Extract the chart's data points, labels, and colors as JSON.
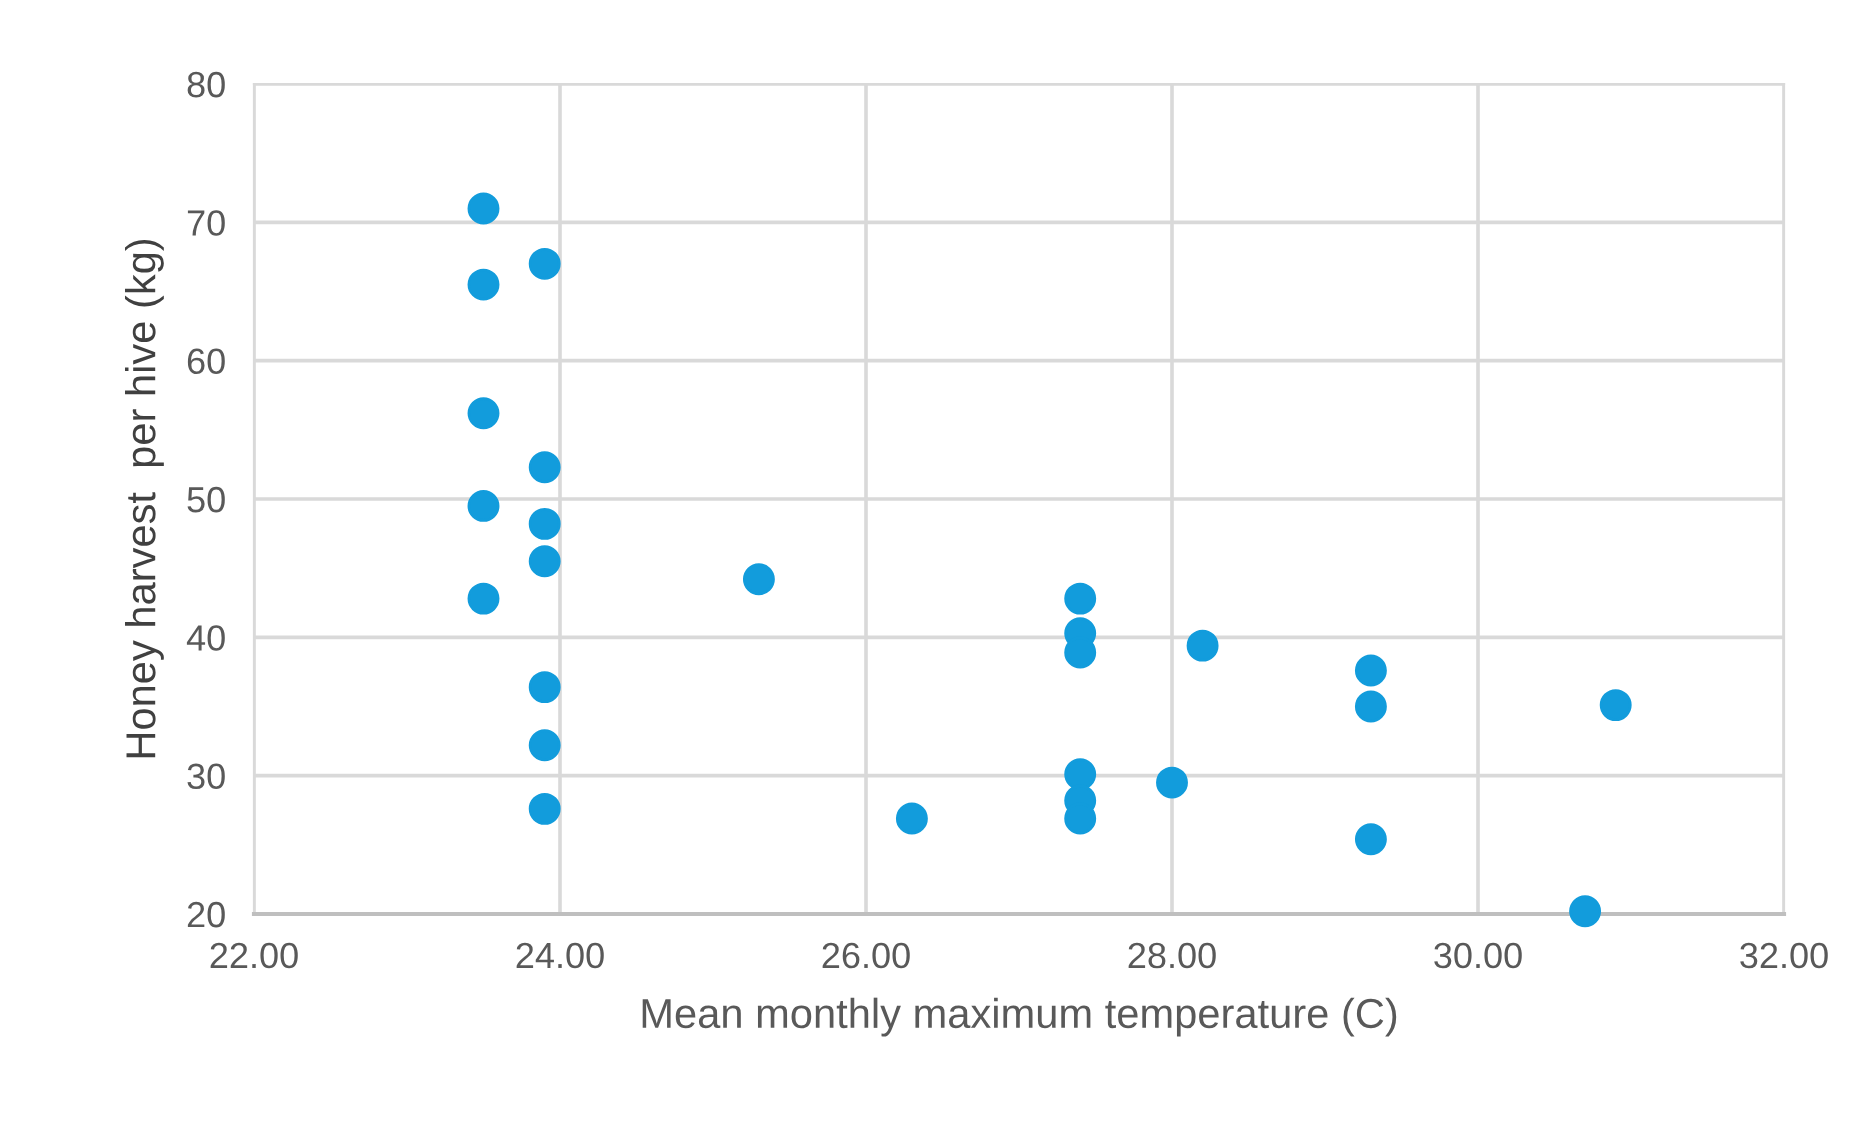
{
  "chart_data": {
    "type": "scatter",
    "xlabel": "Mean monthly maximum temperature (C)",
    "ylabel": "Honey harvest  per hive (kg)",
    "x": [
      23.5,
      23.5,
      23.5,
      23.5,
      23.5,
      23.9,
      23.9,
      23.9,
      23.9,
      23.9,
      23.9,
      23.9,
      25.3,
      26.3,
      27.4,
      27.4,
      27.4,
      27.4,
      27.4,
      27.4,
      28.0,
      28.2,
      29.3,
      29.3,
      29.3,
      30.7,
      30.9
    ],
    "values": [
      71,
      65.5,
      56.2,
      49.5,
      42.8,
      67,
      52.3,
      48.2,
      45.5,
      36.4,
      32.2,
      27.6,
      44.2,
      26.9,
      42.8,
      40.3,
      38.9,
      30.1,
      28.2,
      26.9,
      29.5,
      39.4,
      37.6,
      35.0,
      25.4,
      20.2,
      35.1
    ],
    "color": "#129cdc",
    "marker": "circle",
    "grid": true,
    "xlim": [
      22,
      32
    ],
    "xticks": [
      {
        "value": 22,
        "label": "22.00"
      },
      {
        "value": 24,
        "label": "24.00"
      },
      {
        "value": 26,
        "label": "26.00"
      },
      {
        "value": 28,
        "label": "28.00"
      },
      {
        "value": 30,
        "label": "30.00"
      },
      {
        "value": 32,
        "label": "32.00"
      }
    ],
    "ylim": [
      20,
      80
    ],
    "yticks": [
      20,
      30,
      40,
      50,
      60,
      70,
      80
    ]
  }
}
